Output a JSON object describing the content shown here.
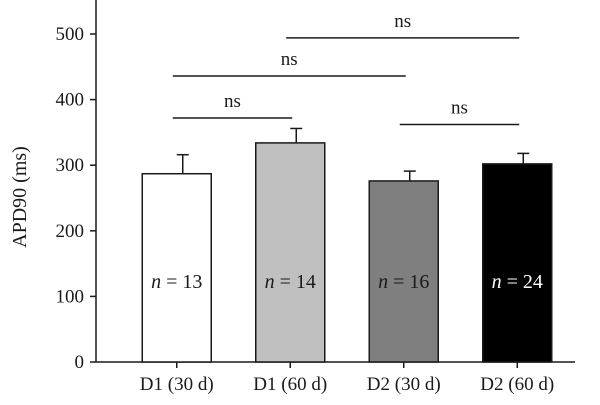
{
  "chart_data": {
    "type": "bar",
    "title": "",
    "xlabel": "",
    "ylabel": "APD90 (ms)",
    "ylim": [
      0,
      500
    ],
    "yticks": [
      "0",
      "100",
      "200",
      "300",
      "400",
      "500"
    ],
    "categories": [
      "D1 (30 d)",
      "D1 (60 d)",
      "D2 (30 d)",
      "D2 (60 d)"
    ],
    "values": [
      287,
      334,
      276,
      302
    ],
    "errors": [
      29,
      22,
      15,
      16
    ],
    "bar_colors": [
      "#ffffff",
      "#c0c0c0",
      "#7f7f7f",
      "#000000"
    ],
    "sample_sizes": [
      {
        "n": "n",
        "eq": " = 13",
        "text_color": "#1a1a1a"
      },
      {
        "n": "n",
        "eq": " = 14",
        "text_color": "#1a1a1a"
      },
      {
        "n": "n",
        "eq": " = 16",
        "text_color": "#1a1a1a"
      },
      {
        "n": "n",
        "eq": " = 24",
        "text_color": "#ffffff"
      }
    ],
    "comparisons": [
      {
        "from": 0,
        "to": 1,
        "level": 372,
        "label": "ns"
      },
      {
        "from": 2,
        "to": 3,
        "level": 362,
        "label": "ns"
      },
      {
        "from": 0,
        "to": 2,
        "level": 436,
        "label": "ns"
      },
      {
        "from": 1,
        "to": 3,
        "level": 494,
        "label": "ns"
      }
    ],
    "grid": false,
    "legend": "none"
  }
}
